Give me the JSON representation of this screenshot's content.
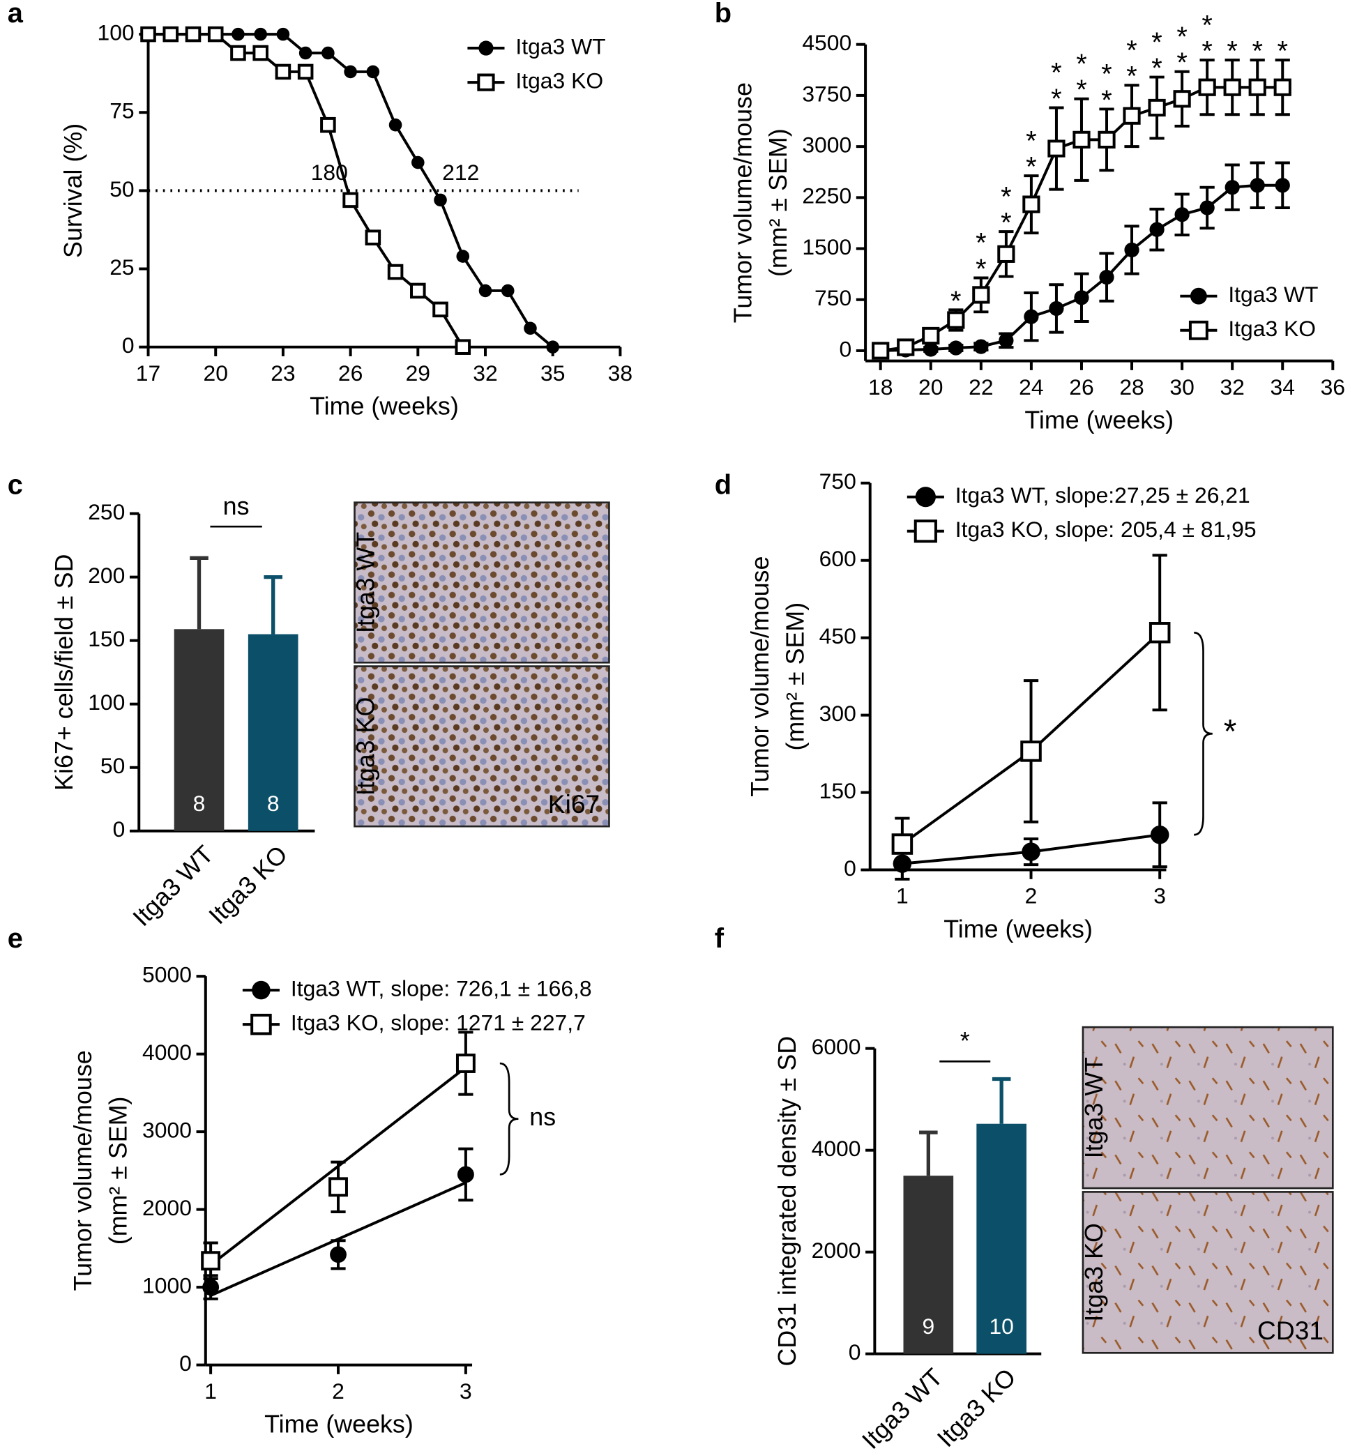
{
  "chart_data": [
    {
      "panel": "a",
      "type": "line",
      "xlabel": "Time (weeks)",
      "ylabel": "Survival (%)",
      "xlim": [
        17,
        38
      ],
      "xticks": [
        17,
        20,
        23,
        26,
        29,
        32,
        35,
        38
      ],
      "ylim": [
        0,
        100
      ],
      "yticks": [
        0,
        25,
        50,
        75,
        100
      ],
      "hline": 50,
      "annotations": [
        "180",
        "212"
      ],
      "legend": "upper right",
      "series": [
        {
          "name": "Itga3 WT",
          "color": "#000000",
          "marker": "circle",
          "x": [
            17,
            18,
            19,
            20,
            21,
            22,
            23,
            24,
            25,
            26,
            27,
            28,
            29,
            30,
            31,
            32,
            33,
            34,
            35
          ],
          "values": [
            100,
            100,
            100,
            100,
            100,
            100,
            100,
            94,
            94,
            88,
            88,
            71,
            59,
            47,
            29,
            18,
            18,
            6,
            0
          ]
        },
        {
          "name": "Itga3 KO",
          "color": "#000000",
          "marker": "square",
          "x": [
            17,
            18,
            19,
            20,
            21,
            22,
            23,
            24,
            25,
            26,
            27,
            28,
            29,
            30,
            31
          ],
          "values": [
            100,
            100,
            100,
            100,
            94,
            94,
            88,
            88,
            71,
            47,
            35,
            24,
            18,
            12,
            0
          ]
        }
      ]
    },
    {
      "panel": "b",
      "type": "line",
      "xlabel": "Time (weeks)",
      "ylabel": [
        "Tumor volume/mouse",
        "(mm² ± SEM)"
      ],
      "xlim": [
        17.4,
        36
      ],
      "xticks": [
        18,
        20,
        22,
        24,
        26,
        28,
        30,
        32,
        34,
        36
      ],
      "ylim": [
        -150,
        4500
      ],
      "yticks": [
        0,
        750,
        1500,
        2250,
        3000,
        3750,
        4500
      ],
      "legend": "lower right",
      "series": [
        {
          "name": "Itga3 WT",
          "color": "#000000",
          "marker": "circle",
          "x": [
            18,
            19,
            20,
            21,
            22,
            23,
            24,
            25,
            26,
            27,
            28,
            29,
            30,
            31,
            32,
            33,
            34
          ],
          "values": [
            0,
            10,
            20,
            40,
            60,
            150,
            500,
            620,
            780,
            1080,
            1480,
            1780,
            2000,
            2100,
            2400,
            2430,
            2430
          ],
          "errors": [
            20,
            20,
            30,
            40,
            50,
            100,
            350,
            350,
            350,
            350,
            350,
            300,
            300,
            300,
            330,
            330,
            330
          ]
        },
        {
          "name": "Itga3 KO",
          "color": "#000000",
          "marker": "square",
          "x": [
            18,
            19,
            20,
            21,
            22,
            23,
            24,
            25,
            26,
            27,
            28,
            29,
            30,
            31,
            32,
            33,
            34
          ],
          "values": [
            0,
            50,
            220,
            450,
            820,
            1420,
            2150,
            2970,
            3100,
            3100,
            3450,
            3570,
            3700,
            3870,
            3870,
            3870,
            3870
          ],
          "errors": [
            20,
            40,
            100,
            150,
            250,
            330,
            420,
            600,
            600,
            450,
            450,
            450,
            400,
            400,
            400,
            400,
            400
          ]
        }
      ],
      "significance": [
        {
          "x": 21,
          "label": "*"
        },
        {
          "x": 22,
          "label": "**"
        },
        {
          "x": 23,
          "label": "**"
        },
        {
          "x": 24,
          "label": "**"
        },
        {
          "x": 25,
          "label": "**"
        },
        {
          "x": 26,
          "label": "**"
        },
        {
          "x": 27,
          "label": "**"
        },
        {
          "x": 28,
          "label": "**"
        },
        {
          "x": 29,
          "label": "**"
        },
        {
          "x": 30,
          "label": "**"
        },
        {
          "x": 31,
          "label": "**"
        },
        {
          "x": 32,
          "label": "*"
        },
        {
          "x": 33,
          "label": "*"
        },
        {
          "x": 34,
          "label": "*"
        }
      ]
    },
    {
      "panel": "c",
      "type": "bar",
      "ylabel": "Ki67+ cells/field  ± SD",
      "categories": [
        "Itga3 WT",
        "Itga3 KO"
      ],
      "values": [
        159,
        155
      ],
      "errors": [
        56,
        45
      ],
      "n": [
        8,
        8
      ],
      "colors": [
        "#333333",
        "#0b5068"
      ],
      "ylim": [
        0,
        250
      ],
      "yticks": [
        0,
        50,
        100,
        150,
        200,
        250
      ],
      "comparison": "ns",
      "images": [
        {
          "label": "Itga3 WT"
        },
        {
          "label": "Itga3 KO"
        }
      ],
      "stain": "Ki67"
    },
    {
      "panel": "d",
      "type": "line",
      "xlabel": "Time (weeks)",
      "ylabel": [
        "Tumor volume/mouse",
        "(mm² ± SEM)"
      ],
      "xlim": [
        0.75,
        3.05
      ],
      "xticks": [
        1,
        2,
        3
      ],
      "ylim": [
        0,
        750
      ],
      "yticks": [
        0,
        150,
        300,
        450,
        600,
        750
      ],
      "legend": "upper left",
      "bracket_label": "*",
      "series": [
        {
          "name": "Itga3 WT, slope:27,25 ± 26,21",
          "color": "#000000",
          "marker": "circle",
          "x": [
            1,
            2,
            3
          ],
          "values": [
            12,
            35,
            68
          ],
          "errors": [
            30,
            25,
            62
          ]
        },
        {
          "name": "Itga3 KO, slope: 205,4 ± 81,95",
          "color": "#000000",
          "marker": "square",
          "x": [
            1,
            2,
            3
          ],
          "values": [
            50,
            230,
            460
          ],
          "errors": [
            50,
            137,
            150
          ]
        }
      ]
    },
    {
      "panel": "e",
      "type": "line",
      "xlabel": "Time (weeks)",
      "ylabel": [
        "Tumor volume/mouse",
        "(mm² ± SEM)"
      ],
      "xlim": [
        0.96,
        3.05
      ],
      "xticks": [
        1,
        2,
        3
      ],
      "ylim": [
        0,
        5000
      ],
      "yticks": [
        0,
        1000,
        2000,
        3000,
        4000,
        5000
      ],
      "legend": "upper left",
      "bracket_label": "ns",
      "series": [
        {
          "name": "Itga3 WT, slope: 726,1 ± 166,8",
          "color": "#000000",
          "marker": "circle",
          "x": [
            1,
            2,
            3
          ],
          "values": [
            1000,
            1420,
            2450
          ],
          "errors": [
            150,
            180,
            330
          ],
          "fit": [
            893,
            2345
          ]
        },
        {
          "name": "Itga3 KO, slope:  1271 ± 227,7",
          "color": "#000000",
          "marker": "square",
          "x": [
            1,
            2,
            3
          ],
          "values": [
            1340,
            2290,
            3880
          ],
          "errors": [
            230,
            320,
            400
          ],
          "fit": [
            1286,
            3828
          ]
        }
      ]
    },
    {
      "panel": "f",
      "type": "bar",
      "ylabel": "CD31 integrated density ± SD",
      "categories": [
        "Itga3 WT",
        "Itga3 KO"
      ],
      "values": [
        3500,
        4520
      ],
      "errors": [
        850,
        880
      ],
      "n": [
        9,
        10
      ],
      "colors": [
        "#333333",
        "#0b5068"
      ],
      "ylim": [
        0,
        6000
      ],
      "yticks": [
        0,
        2000,
        4000,
        6000
      ],
      "comparison": "*",
      "images": [
        {
          "label": "Itga3 WT"
        },
        {
          "label": "Itga3 KO"
        }
      ],
      "stain": "CD31"
    }
  ]
}
